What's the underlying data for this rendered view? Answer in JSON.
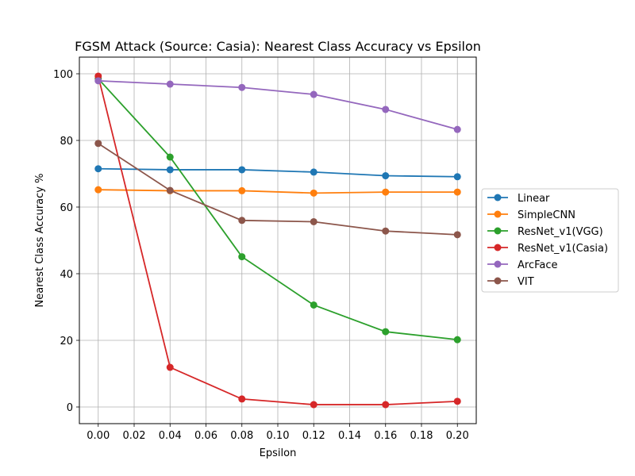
{
  "chart_data": {
    "type": "line",
    "title": "FGSM Attack (Source: Casia): Nearest Class Accuracy vs Epsilon",
    "xlabel": "Epsilon",
    "ylabel": "Nearest Class Accuracy %",
    "x": [
      0.0,
      0.04,
      0.08,
      0.12,
      0.16,
      0.2
    ],
    "xticks": [
      "0.00",
      "0.02",
      "0.04",
      "0.06",
      "0.08",
      "0.10",
      "0.12",
      "0.14",
      "0.16",
      "0.18",
      "0.20"
    ],
    "yticks": [
      "0",
      "20",
      "40",
      "60",
      "80",
      "100"
    ],
    "xlim": [
      -0.0105,
      0.2105
    ],
    "ylim": [
      -5,
      105
    ],
    "grid": true,
    "legend_position": "center-right-outside",
    "series": [
      {
        "name": "Linear",
        "color": "#1f77b4",
        "values": [
          71.5,
          71.2,
          71.2,
          70.5,
          69.4,
          69.1
        ]
      },
      {
        "name": "SimpleCNN",
        "color": "#ff7f0e",
        "values": [
          65.2,
          64.9,
          64.9,
          64.2,
          64.5,
          64.5
        ]
      },
      {
        "name": "ResNet_v1(VGG)",
        "color": "#2ca02c",
        "values": [
          98.5,
          75.0,
          45.1,
          30.6,
          22.6,
          20.2
        ]
      },
      {
        "name": "ResNet_v1(Casia)",
        "color": "#d62728",
        "values": [
          99.3,
          11.9,
          2.4,
          0.7,
          0.7,
          1.7
        ]
      },
      {
        "name": "ArcFace",
        "color": "#9467bd",
        "values": [
          97.9,
          96.9,
          95.9,
          93.8,
          89.3,
          83.3
        ]
      },
      {
        "name": "VIT",
        "color": "#8c564b",
        "values": [
          79.1,
          65.0,
          56.0,
          55.6,
          52.8,
          51.7
        ]
      }
    ]
  }
}
